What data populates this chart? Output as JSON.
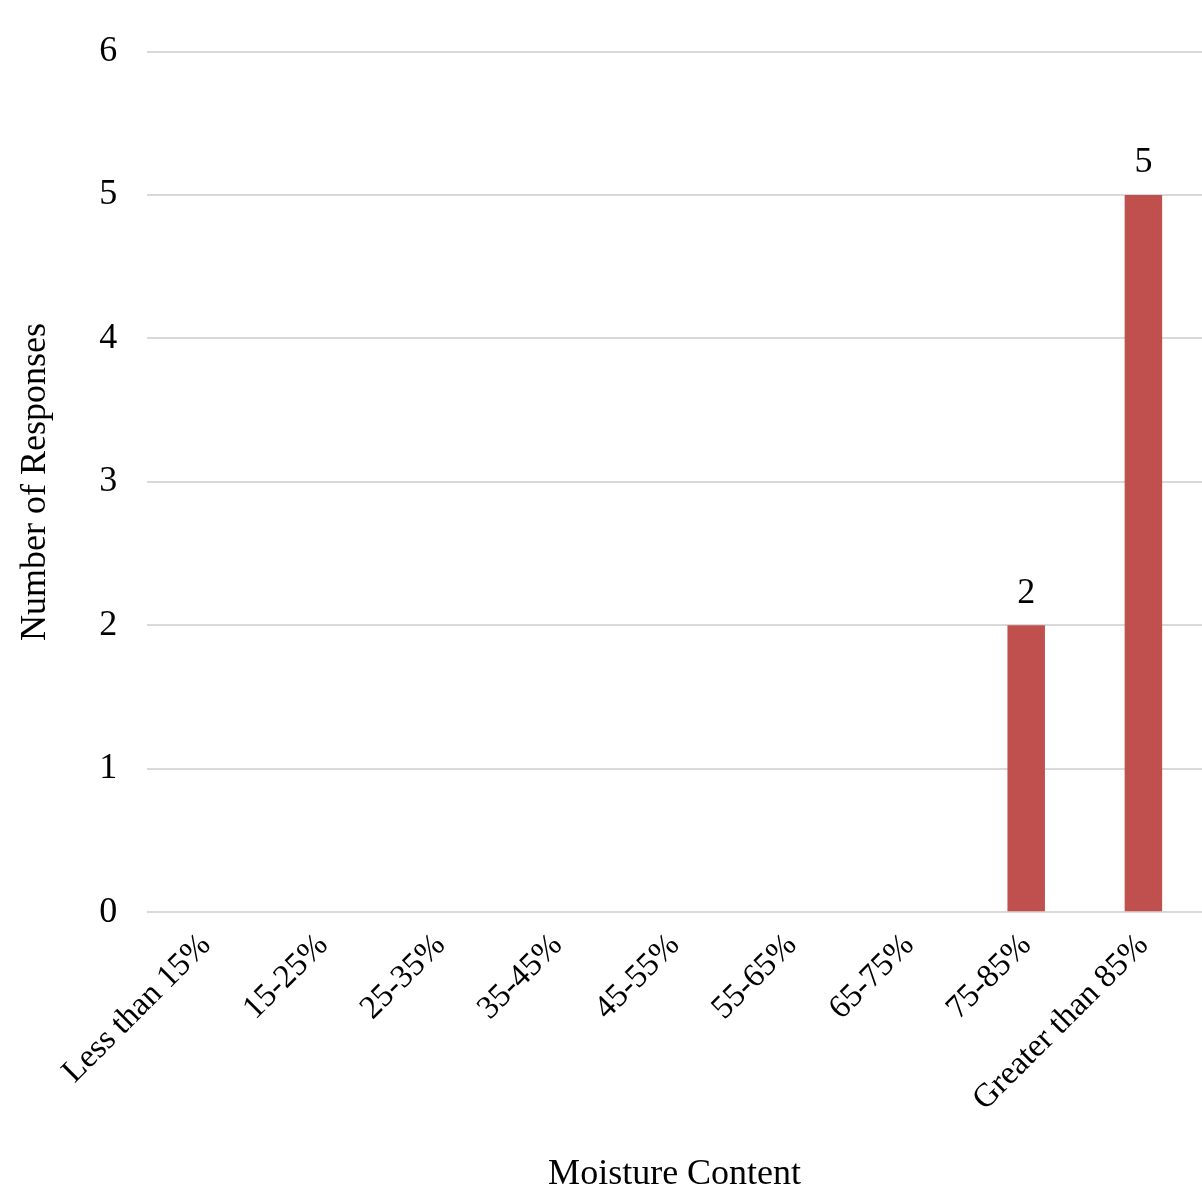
{
  "chart_data": {
    "type": "bar",
    "xlabel": "Moisture Content",
    "ylabel": "Number of Responses",
    "categories": [
      "Less than 15%",
      "15-25%",
      "25-35%",
      "35-45%",
      "45-55%",
      "55-65%",
      "65-75%",
      "75-85%",
      "Greater than 85%"
    ],
    "values": [
      0,
      0,
      0,
      0,
      0,
      0,
      0,
      2,
      5
    ],
    "value_labels": [
      null,
      null,
      null,
      null,
      null,
      null,
      null,
      "2",
      "5"
    ],
    "color": "#c0504d",
    "ylim": [
      0,
      6
    ],
    "yticks": [
      0,
      1,
      2,
      3,
      4,
      5,
      6
    ],
    "grid": "y",
    "legend": false
  }
}
